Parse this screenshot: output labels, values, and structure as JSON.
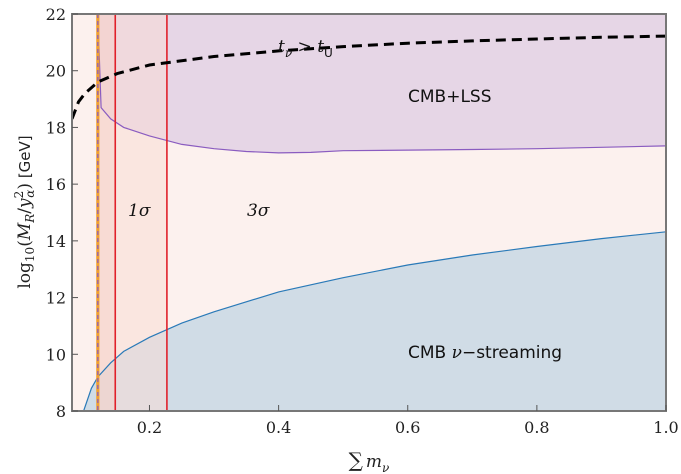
{
  "chart_data": {
    "type": "area",
    "xlabel": "∑ m_ν",
    "ylabel": "log10(M_R/y_α²) [GeV]",
    "xlim": [
      0.08,
      1.0
    ],
    "ylim": [
      8,
      22
    ],
    "x_ticks": [
      0.2,
      0.4,
      0.6,
      0.8,
      1.0
    ],
    "x_tick_labels": [
      "0.2",
      "0.4",
      "0.6",
      "0.8",
      "1.0"
    ],
    "y_ticks": [
      8,
      10,
      12,
      14,
      16,
      18,
      20,
      22
    ],
    "y_tick_labels": [
      "8",
      "10",
      "12",
      "14",
      "16",
      "18",
      "20",
      "22"
    ],
    "regions": {
      "cmb_lss": {
        "label": "CMB+LSS",
        "color": "#e6d6e6",
        "edge_color": "#8a5cc0",
        "boundary": [
          [
            0.12,
            22.0
          ],
          [
            0.125,
            18.7
          ],
          [
            0.14,
            18.3
          ],
          [
            0.16,
            18.0
          ],
          [
            0.2,
            17.7
          ],
          [
            0.25,
            17.4
          ],
          [
            0.3,
            17.25
          ],
          [
            0.35,
            17.15
          ],
          [
            0.4,
            17.1
          ],
          [
            0.45,
            17.12
          ],
          [
            0.5,
            17.18
          ],
          [
            0.6,
            17.2
          ],
          [
            0.7,
            17.22
          ],
          [
            0.8,
            17.25
          ],
          [
            0.9,
            17.3
          ],
          [
            1.0,
            17.35
          ]
        ]
      },
      "cmb_streaming": {
        "label_prefix": "CMB",
        "label_nu": "ν",
        "label_suffix": "−streaming",
        "color": "#d0dce6",
        "edge_color": "#2a7ab8",
        "boundary": [
          [
            0.098,
            8.0
          ],
          [
            0.11,
            8.8
          ],
          [
            0.12,
            9.2
          ],
          [
            0.14,
            9.7
          ],
          [
            0.16,
            10.1
          ],
          [
            0.2,
            10.6
          ],
          [
            0.25,
            11.1
          ],
          [
            0.3,
            11.5
          ],
          [
            0.4,
            12.2
          ],
          [
            0.5,
            12.7
          ],
          [
            0.6,
            13.15
          ],
          [
            0.7,
            13.5
          ],
          [
            0.8,
            13.8
          ],
          [
            0.9,
            14.08
          ],
          [
            1.0,
            14.32
          ]
        ]
      },
      "background": {
        "color": "#fcf1ee"
      }
    },
    "bands": {
      "one_sigma": {
        "label": "1σ",
        "x_range": [
          0.12,
          0.147
        ],
        "color": "#f7cfc6"
      },
      "three_sigma": {
        "label": "3σ",
        "x_range": [
          0.12,
          0.227
        ],
        "color": "#f8ddd6"
      },
      "line_color": "#e0212b"
    },
    "dashed_curve": {
      "label": "t_ν > t_U",
      "color": "#000000",
      "points": [
        [
          0.08,
          18.3
        ],
        [
          0.09,
          18.9
        ],
        [
          0.1,
          19.2
        ],
        [
          0.12,
          19.6
        ],
        [
          0.15,
          19.9
        ],
        [
          0.2,
          20.2
        ],
        [
          0.3,
          20.5
        ],
        [
          0.4,
          20.7
        ],
        [
          0.5,
          20.85
        ],
        [
          0.6,
          20.97
        ],
        [
          0.7,
          21.05
        ],
        [
          0.8,
          21.12
        ],
        [
          0.9,
          21.18
        ],
        [
          1.0,
          21.22
        ]
      ]
    },
    "vertical_lines": {
      "minimum_mass": {
        "x": 0.12,
        "color_outer": "#f0a030",
        "color_inner": "#8a5cc0"
      },
      "one_sigma_edge": {
        "x": 0.147,
        "color": "#e0212b"
      },
      "three_sigma_edge": {
        "x": 0.227,
        "color": "#e0212b"
      }
    },
    "annotations": {
      "t_nu": "t",
      "t_nu_sub": "ν",
      "gt": " > ",
      "t_u": "t",
      "t_u_sub": "U",
      "cmb_lss": "CMB+LSS",
      "one_sigma": "1σ",
      "three_sigma": "3σ"
    },
    "axis_labels": {
      "x_sum": "∑",
      "x_m": "m",
      "x_nu": "ν",
      "y_main": "log",
      "y_10": "10",
      "y_open": "(",
      "y_M": "M",
      "y_R": "R",
      "y_slash": "/",
      "y_y": "y",
      "y_2": "2",
      "y_alpha": "α",
      "y_close": ")",
      "y_unit": " [GeV]"
    }
  }
}
